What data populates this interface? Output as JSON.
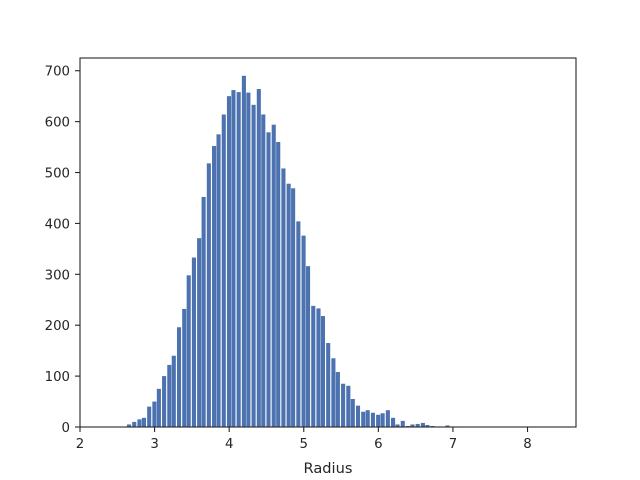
{
  "chart_data": {
    "type": "bar",
    "xlabel": "Radius",
    "ylabel": "",
    "title": "",
    "xlim": [
      2.0,
      8.65
    ],
    "ylim": [
      0,
      725
    ],
    "xticks": [
      2,
      3,
      4,
      5,
      6,
      7,
      8
    ],
    "yticks": [
      0,
      100,
      200,
      300,
      400,
      500,
      600,
      700
    ],
    "bar_color": "#4c72b0",
    "grid": false,
    "legend": "none",
    "bin_width": 0.067,
    "bins_left": [
      2.63,
      2.7,
      2.77,
      2.83,
      2.9,
      2.97,
      3.03,
      3.1,
      3.17,
      3.23,
      3.3,
      3.37,
      3.43,
      3.5,
      3.57,
      3.63,
      3.7,
      3.77,
      3.83,
      3.9,
      3.97,
      4.03,
      4.1,
      4.17,
      4.23,
      4.3,
      4.37,
      4.43,
      4.5,
      4.57,
      4.63,
      4.7,
      4.77,
      4.83,
      4.9,
      4.97,
      5.03,
      5.1,
      5.17,
      5.23,
      5.3,
      5.37,
      5.43,
      5.5,
      5.57,
      5.63,
      5.7,
      5.77,
      5.83,
      5.9,
      5.97,
      6.03,
      6.1,
      6.17,
      6.23,
      6.3,
      6.37,
      6.43,
      6.5,
      6.57,
      6.63,
      6.7,
      6.77,
      6.83,
      6.9,
      6.97,
      7.03,
      7.1,
      7.17,
      7.23,
      7.3,
      7.37,
      7.43,
      7.5,
      7.57,
      7.63,
      7.7,
      7.77,
      7.83,
      7.9,
      7.97,
      8.03,
      8.1,
      8.17
    ],
    "values": [
      5,
      10,
      15,
      18,
      40,
      50,
      75,
      100,
      122,
      140,
      196,
      232,
      298,
      333,
      371,
      452,
      518,
      552,
      575,
      614,
      650,
      662,
      658,
      690,
      657,
      633,
      664,
      614,
      579,
      594,
      560,
      508,
      478,
      469,
      404,
      376,
      316,
      238,
      233,
      218,
      165,
      135,
      108,
      85,
      81,
      55,
      42,
      30,
      33,
      28,
      24,
      27,
      33,
      18,
      5,
      12,
      2,
      5,
      6,
      8,
      4,
      2,
      1,
      1,
      3,
      1,
      1,
      1,
      0,
      0,
      0,
      0,
      0,
      0,
      0,
      0,
      0,
      0,
      0,
      0,
      0,
      0,
      0,
      0
    ]
  }
}
